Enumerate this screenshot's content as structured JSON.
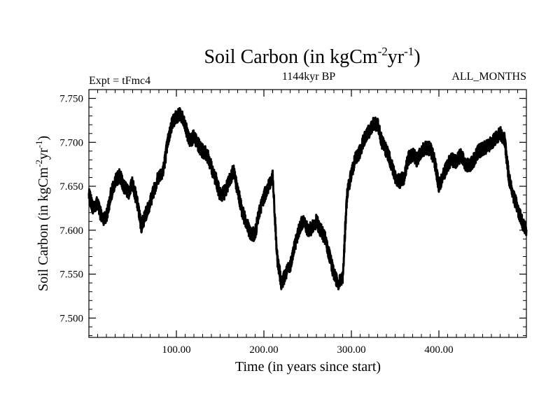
{
  "chart_data": {
    "type": "line",
    "title": {
      "base": "Soil Carbon (in kgCm",
      "sup1": "-2",
      "mid": "yr",
      "sup2": "-1",
      "end": ")"
    },
    "subtitle_left": "Expt = tFmc4",
    "subtitle_center": "1144kyr BP",
    "subtitle_right": "ALL_MONTHS",
    "xlabel": "Time (in years since start)",
    "ylabel": {
      "base": "Soil Carbon (in kgCm",
      "sup1": "-2",
      "mid": "yr",
      "sup2": "-1",
      "end": ")"
    },
    "xlim": [
      0,
      500
    ],
    "ylim": [
      7.478,
      7.76
    ],
    "x_ticks": [
      100,
      200,
      300,
      400
    ],
    "x_tick_labels": [
      "100.00",
      "200.00",
      "300.00",
      "400.00"
    ],
    "y_ticks": [
      7.5,
      7.55,
      7.6,
      7.65,
      7.7,
      7.75
    ],
    "y_tick_labels": [
      "7.500",
      "7.550",
      "7.600",
      "7.650",
      "7.700",
      "7.750"
    ],
    "line_color": "#000000",
    "series": [
      {
        "name": "Soil Carbon",
        "x": [
          0,
          5,
          10,
          15,
          20,
          25,
          30,
          35,
          40,
          45,
          50,
          55,
          60,
          65,
          70,
          75,
          80,
          85,
          90,
          95,
          100,
          105,
          110,
          115,
          120,
          125,
          130,
          135,
          140,
          145,
          150,
          155,
          160,
          165,
          170,
          175,
          180,
          185,
          190,
          195,
          200,
          205,
          210,
          215,
          220,
          225,
          230,
          235,
          240,
          245,
          250,
          255,
          260,
          265,
          270,
          275,
          280,
          285,
          290,
          295,
          300,
          305,
          310,
          315,
          320,
          325,
          330,
          335,
          340,
          345,
          350,
          355,
          360,
          365,
          370,
          375,
          380,
          385,
          390,
          395,
          400,
          405,
          410,
          415,
          420,
          425,
          430,
          435,
          440,
          445,
          450,
          455,
          460,
          465,
          470,
          475,
          480,
          485,
          490,
          495,
          500
        ],
        "values": [
          7.64,
          7.625,
          7.632,
          7.612,
          7.615,
          7.64,
          7.655,
          7.663,
          7.65,
          7.642,
          7.654,
          7.632,
          7.605,
          7.618,
          7.632,
          7.648,
          7.662,
          7.668,
          7.7,
          7.722,
          7.73,
          7.732,
          7.718,
          7.702,
          7.706,
          7.697,
          7.69,
          7.686,
          7.672,
          7.658,
          7.64,
          7.643,
          7.655,
          7.668,
          7.646,
          7.622,
          7.608,
          7.595,
          7.596,
          7.622,
          7.638,
          7.65,
          7.66,
          7.57,
          7.54,
          7.55,
          7.56,
          7.582,
          7.6,
          7.612,
          7.6,
          7.602,
          7.61,
          7.6,
          7.59,
          7.57,
          7.55,
          7.54,
          7.545,
          7.64,
          7.665,
          7.682,
          7.69,
          7.705,
          7.712,
          7.722,
          7.72,
          7.7,
          7.69,
          7.678,
          7.66,
          7.655,
          7.66,
          7.682,
          7.686,
          7.68,
          7.69,
          7.693,
          7.693,
          7.68,
          7.65,
          7.662,
          7.675,
          7.68,
          7.678,
          7.686,
          7.676,
          7.672,
          7.68,
          7.69,
          7.692,
          7.695,
          7.7,
          7.705,
          7.71,
          7.704,
          7.66,
          7.64,
          7.625,
          7.61,
          7.6
        ]
      }
    ]
  }
}
